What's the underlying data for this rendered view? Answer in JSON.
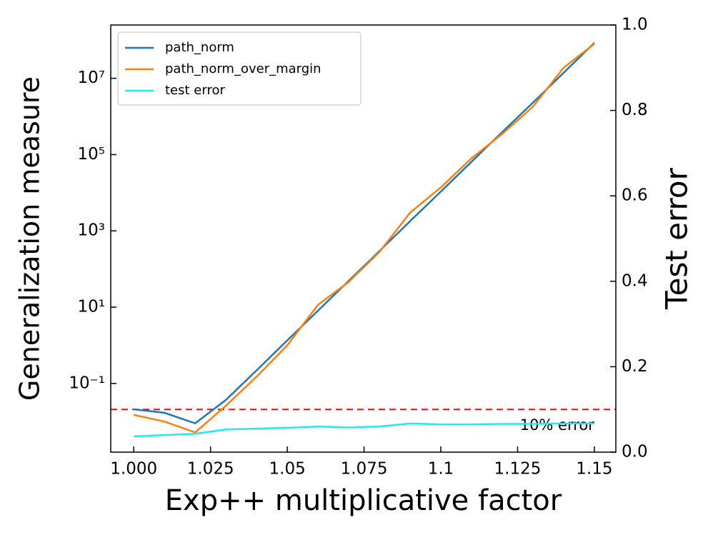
{
  "chart_data": {
    "type": "line",
    "xlabel": "Exp++ multiplicative factor",
    "ylabel": "Generalization measure",
    "y2label": "Test error",
    "yscale": "log",
    "x": [
      1.0,
      1.01,
      1.02,
      1.03,
      1.04,
      1.05,
      1.06,
      1.07,
      1.08,
      1.09,
      1.1,
      1.11,
      1.12,
      1.13,
      1.14,
      1.15
    ],
    "series": [
      {
        "name": "path_norm",
        "color": "#1f77b4",
        "values": [
          0.021,
          0.017,
          0.009,
          0.037,
          0.22,
          1.35,
          8.1,
          49,
          295,
          1800,
          10700,
          65000,
          390000,
          2300000,
          14000000,
          85000000
        ]
      },
      {
        "name": "path_norm_over_margin",
        "color": "#ff7f0e",
        "values": [
          0.015,
          0.01,
          0.0052,
          0.026,
          0.15,
          1.0,
          11.5,
          46,
          280,
          3000,
          13800,
          80000,
          350000,
          1800000,
          19000000,
          80000000
        ]
      },
      {
        "name": "test error",
        "color": "#22e8f2",
        "axis": "y2",
        "values": [
          0.037,
          0.04,
          0.043,
          0.053,
          0.055,
          0.057,
          0.06,
          0.058,
          0.06,
          0.067,
          0.065,
          0.065,
          0.066,
          0.066,
          0.067,
          0.067
        ]
      }
    ],
    "hline": {
      "value": 0.1,
      "axis": "y2",
      "color": "#ff0000",
      "label": "10% error"
    },
    "xlim": [
      0.9925,
      1.157
    ],
    "xticks": [
      {
        "value": 1.0,
        "label": "1.000"
      },
      1.025,
      1.05,
      1.075,
      1.1,
      1.125,
      1.15
    ],
    "ylim": [
      0.00158,
      250000000
    ],
    "yticks": [
      {
        "value": 0.1,
        "label": "10⁻¹"
      },
      {
        "value": 10,
        "label": "10¹"
      },
      {
        "value": 1000,
        "label": "10³"
      },
      {
        "value": 100000,
        "label": "10⁵"
      },
      {
        "value": 10000000,
        "label": "10⁷"
      }
    ],
    "y2lim": [
      0,
      1
    ],
    "y2ticks": [
      {
        "value": 0,
        "label": "0.0"
      },
      0.2,
      0.4,
      0.6,
      0.8,
      {
        "value": 1,
        "label": "1.0"
      }
    ],
    "legend": "upper left"
  }
}
